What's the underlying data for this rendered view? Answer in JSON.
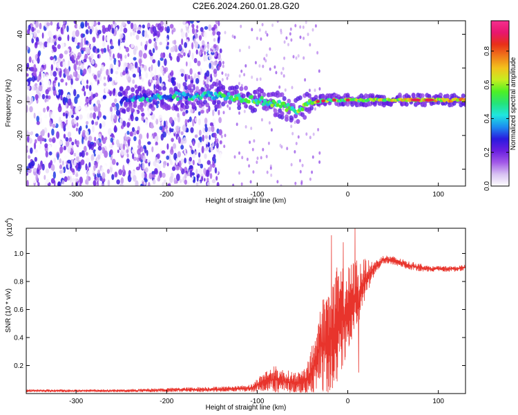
{
  "title": "C2E6.2024.260.01.28.G20",
  "chart_data": [
    {
      "type": "heatmap",
      "xlabel": "Height of straight line (km)",
      "ylabel": "Frequency (Hz)",
      "xlim": [
        -355,
        130
      ],
      "ylim": [
        -50,
        48
      ],
      "xticks": [
        -300,
        -200,
        -100,
        0,
        100
      ],
      "yticks": [
        -40,
        -20,
        0,
        20,
        40
      ],
      "colorbar": {
        "label": "Normalized spectral amplitude",
        "range": [
          0,
          0.98
        ],
        "ticks": [
          0.0,
          0.2,
          0.4,
          0.6,
          0.8
        ],
        "colors": [
          "#ffffff",
          "#d8c2f2",
          "#a259e8",
          "#6a1fe0",
          "#2a1adf",
          "#1c8cf0",
          "#1fe6e0",
          "#25e37a",
          "#4df025",
          "#c6ee20",
          "#f2c21c",
          "#f07a1a",
          "#e83018",
          "#e8166e",
          "#f42f8e"
        ]
      },
      "features": [
        {
          "name": "noise",
          "x": [
            -355,
            -140
          ],
          "y": [
            -50,
            48
          ],
          "level": 0.2
        },
        {
          "name": "band",
          "points": [
            [
              -250,
              1
            ],
            [
              -200,
              3
            ],
            [
              -150,
              4
            ],
            [
              -125,
              3
            ],
            [
              -100,
              1
            ],
            [
              -80,
              -1
            ],
            [
              -65,
              -4
            ],
            [
              -55,
              -5
            ],
            [
              -45,
              -2
            ],
            [
              -35,
              0
            ],
            [
              -20,
              1
            ],
            [
              0,
              1
            ],
            [
              50,
              1
            ],
            [
              130,
              1
            ]
          ],
          "level_start": 0.35,
          "level_end": 0.7
        },
        {
          "name": "peaks",
          "x": [
            -33,
            -27,
            -15,
            0,
            75,
            90
          ],
          "level": 0.9
        }
      ]
    },
    {
      "type": "line",
      "xlabel": "Height of straight line (km)",
      "ylabel": "SNR (10 * v/v)",
      "exponent_label": "(x10",
      "exponent_power": "4",
      "exponent_close": ")",
      "xlim": [
        -355,
        130
      ],
      "ylim": [
        0,
        1.18
      ],
      "xticks": [
        -300,
        -200,
        -100,
        0,
        100
      ],
      "yticks": [
        0.2,
        0.4,
        0.6,
        0.8,
        1.0
      ],
      "line_color": "#e8342c",
      "envelope": {
        "x": [
          -355,
          -250,
          -200,
          -150,
          -120,
          -105,
          -100,
          -90,
          -80,
          -70,
          -60,
          -50,
          -45,
          -40,
          -35,
          -30,
          -25,
          -20,
          -15,
          -10,
          -5,
          0,
          5,
          10,
          15,
          20,
          25,
          30,
          35,
          40,
          50,
          60,
          70,
          80,
          90,
          100,
          110,
          120,
          130
        ],
        "mean": [
          0.02,
          0.02,
          0.025,
          0.03,
          0.035,
          0.04,
          0.06,
          0.09,
          0.1,
          0.09,
          0.08,
          0.08,
          0.1,
          0.15,
          0.22,
          0.35,
          0.35,
          0.4,
          0.4,
          0.5,
          0.55,
          0.6,
          0.65,
          0.7,
          0.75,
          0.82,
          0.86,
          0.9,
          0.93,
          0.96,
          0.95,
          0.93,
          0.91,
          0.9,
          0.89,
          0.89,
          0.89,
          0.89,
          0.9
        ],
        "amp": [
          0.01,
          0.01,
          0.015,
          0.02,
          0.02,
          0.03,
          0.05,
          0.08,
          0.1,
          0.08,
          0.08,
          0.08,
          0.12,
          0.18,
          0.25,
          0.3,
          0.4,
          0.45,
          0.45,
          0.4,
          0.35,
          0.3,
          0.3,
          0.25,
          0.2,
          0.15,
          0.08,
          0.05,
          0.04,
          0.03,
          0.03,
          0.03,
          0.03,
          0.03,
          0.02,
          0.02,
          0.02,
          0.02,
          0.02
        ]
      },
      "spikes": [
        {
          "x": -18,
          "y": 1.13
        },
        {
          "x": -12,
          "y": 0.9
        },
        {
          "x": -5,
          "y": 1.08
        },
        {
          "x": 8,
          "y": 1.18
        },
        {
          "x": 12,
          "y": 0.15
        },
        {
          "x": 10,
          "y": 0.95
        }
      ]
    }
  ]
}
